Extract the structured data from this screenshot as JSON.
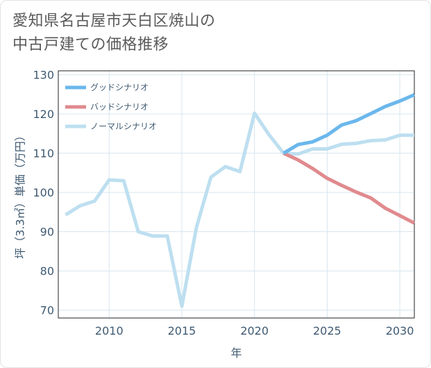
{
  "title_lines": [
    "愛知県名古屋市天白区焼山の",
    "中古戸建ての価格推移"
  ],
  "chart_data": {
    "type": "line",
    "xlabel": "年",
    "ylabel": "坪（3.3㎡）単価（万円）",
    "xlim": [
      2006.5,
      2031
    ],
    "ylim": [
      68,
      131
    ],
    "xticks": [
      2010,
      2015,
      2020,
      2025,
      2030
    ],
    "yticks": [
      70,
      80,
      90,
      100,
      110,
      120,
      130
    ],
    "legend_position": "top-left",
    "series": [
      {
        "name": "グッドシナリオ",
        "color": "#6bb7ec",
        "x": [
          2022,
          2023,
          2024,
          2025,
          2026,
          2027,
          2028,
          2029,
          2030,
          2031
        ],
        "y": [
          110,
          112.2,
          112.9,
          114.6,
          117.2,
          118.3,
          120.1,
          121.9,
          123.3,
          124.9
        ]
      },
      {
        "name": "バッドシナリオ",
        "color": "#e08a8e",
        "x": [
          2022,
          2023,
          2024,
          2025,
          2026,
          2027,
          2028,
          2029,
          2030,
          2031
        ],
        "y": [
          110,
          108.3,
          106.1,
          103.6,
          101.8,
          100.1,
          98.6,
          96,
          94.1,
          92.2
        ]
      },
      {
        "name": "ノーマルシナリオ",
        "color": "#bddff0",
        "x": [
          2007,
          2008,
          2009,
          2010,
          2011,
          2012,
          2013,
          2014,
          2015,
          2016,
          2017,
          2018,
          2019,
          2020,
          2021,
          2022,
          2023,
          2024,
          2025,
          2026,
          2027,
          2028,
          2029,
          2030,
          2031
        ],
        "y": [
          94.3,
          96.6,
          97.8,
          103.2,
          103,
          90,
          88.9,
          88.9,
          71,
          91,
          103.9,
          106.6,
          105.3,
          120.2,
          114.7,
          110,
          109.8,
          111.1,
          111.1,
          112.3,
          112.5,
          113.2,
          113.4,
          114.6,
          114.6
        ]
      }
    ]
  }
}
